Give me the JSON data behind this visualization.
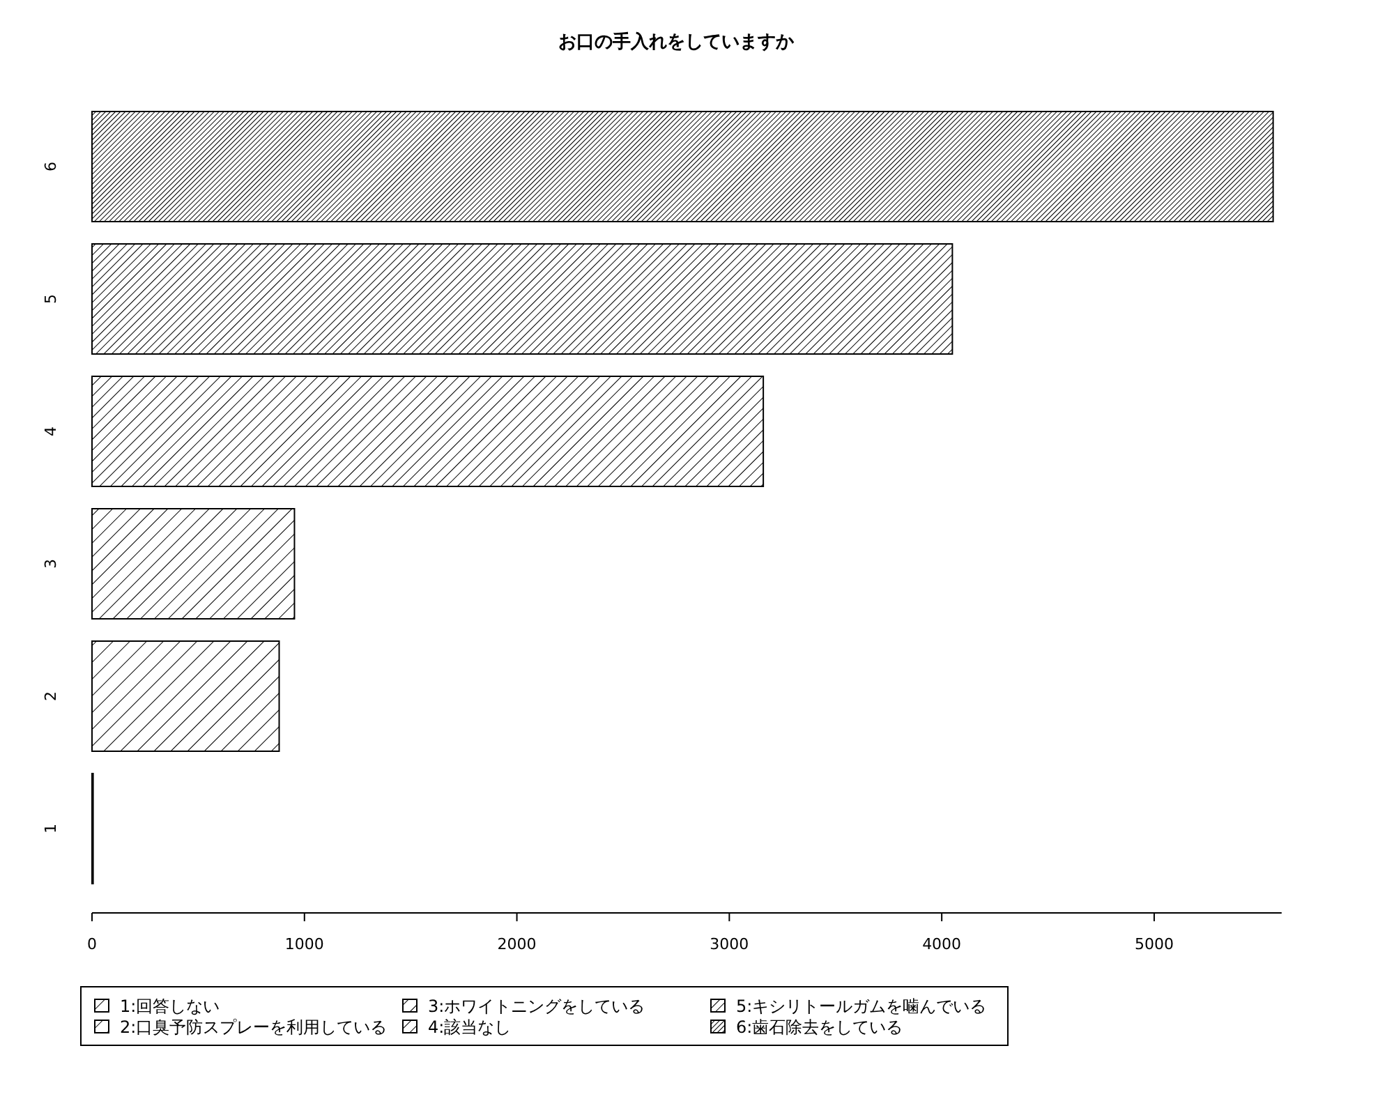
{
  "chart_data": {
    "type": "bar",
    "orientation": "horizontal",
    "stacked": true,
    "title": "お口の手入れをしていますか",
    "categories": [
      "6",
      "5",
      "4",
      "3",
      "2",
      "1"
    ],
    "series": [
      {
        "name": "1:回答しない",
        "color": "#000000",
        "values": [
          null,
          null,
          null,
          null,
          null,
          5
        ]
      },
      {
        "name": "2:口臭予防スプレーを利用している",
        "color": "#000000",
        "values": [
          null,
          null,
          null,
          null,
          881,
          null
        ]
      },
      {
        "name": "3:ホワイトニングをしている",
        "color": "#000000",
        "values": [
          null,
          null,
          null,
          953,
          null,
          null
        ]
      },
      {
        "name": "4:該当なし",
        "color": "#000000",
        "values": [
          null,
          null,
          3160,
          null,
          null,
          null
        ]
      },
      {
        "name": "5:キシリトールガムを噛んでいる",
        "color": "#000000",
        "values": [
          null,
          4050,
          null,
          null,
          null,
          null
        ]
      },
      {
        "name": "6:歯石除去をしている",
        "color": "#000000",
        "values": [
          5560,
          null,
          null,
          null,
          null,
          null
        ]
      }
    ],
    "xlim": [
      0,
      5600
    ],
    "xticks": [
      0,
      1000,
      2000,
      3000,
      4000,
      5000
    ],
    "grid": false,
    "legend": "bottom"
  }
}
